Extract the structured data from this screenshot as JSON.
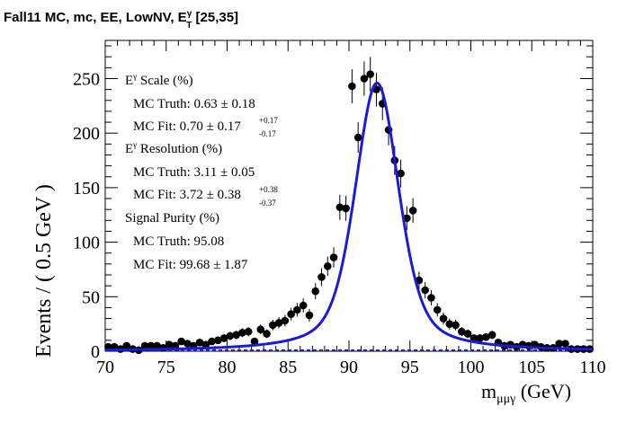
{
  "title": {
    "main": "Fall11 MC, mc, EE, LowNV, E",
    "sup": "γ",
    "sub": "T",
    "range": " [25,35]"
  },
  "annotations": {
    "scale_label_E": "E",
    "scale_label_sup": "γ",
    "scale_label_rest": " Scale (%)",
    "scale_truth": "MC Truth: 0.63 ± 0.18",
    "scale_fit": "MC Fit: 0.70 ± 0.17",
    "scale_fit_up": "+0.17",
    "scale_fit_dn": "-0.17",
    "res_label_E": "E",
    "res_label_sup": "γ",
    "res_label_rest": " Resolution (%)",
    "res_truth": "MC Truth: 3.11 ± 0.05",
    "res_fit": "MC Fit: 3.72 ± 0.38",
    "res_fit_up": "+0.38",
    "res_fit_dn": "-0.37",
    "purity_label": "Signal Purity (%)",
    "purity_truth": "MC Truth: 95.08",
    "purity_fit": "MC Fit: 99.68 ± 1.87"
  },
  "chart_data": {
    "type": "scatter",
    "xlabel_main": "m",
    "xlabel_sub": "μμγ",
    "xlabel_unit": " (GeV)",
    "ylabel": "Events / ( 0.5 GeV )",
    "xlim": [
      70,
      110
    ],
    "ylim": [
      0,
      285
    ],
    "xticks": [
      70,
      75,
      80,
      85,
      90,
      95,
      100,
      105,
      110
    ],
    "yticks": [
      0,
      50,
      100,
      150,
      200,
      250
    ],
    "x": [
      70.25,
      70.75,
      71.25,
      71.75,
      72.25,
      72.75,
      73.25,
      73.75,
      74.25,
      74.75,
      75.25,
      75.75,
      76.25,
      76.75,
      77.25,
      77.75,
      78.25,
      78.75,
      79.25,
      79.75,
      80.25,
      80.75,
      81.25,
      81.75,
      82.25,
      82.75,
      83.25,
      83.75,
      84.25,
      84.75,
      85.25,
      85.75,
      86.25,
      86.75,
      87.25,
      87.75,
      88.25,
      88.75,
      89.25,
      89.75,
      90.25,
      90.75,
      91.25,
      91.75,
      92.25,
      92.75,
      93.25,
      93.75,
      94.25,
      94.75,
      95.25,
      95.75,
      96.25,
      96.75,
      97.25,
      97.75,
      98.25,
      98.75,
      99.25,
      99.75,
      100.25,
      100.75,
      101.25,
      101.75,
      102.25,
      102.75,
      103.25,
      103.75,
      104.25,
      104.75,
      105.25,
      105.75,
      106.25,
      106.75,
      107.25,
      107.75,
      108.25,
      108.75,
      109.25,
      109.75
    ],
    "y": [
      4,
      4,
      2,
      5,
      2,
      1,
      5,
      5,
      5,
      3,
      6,
      5,
      9,
      7,
      5,
      8,
      6,
      9,
      10,
      12,
      14,
      15,
      17,
      18,
      9,
      20,
      16,
      24,
      26,
      28,
      34,
      38,
      42,
      33,
      55,
      68,
      78,
      86,
      132,
      131,
      243,
      196,
      250,
      254,
      240,
      227,
      203,
      175,
      163,
      122,
      129,
      65,
      56,
      49,
      38,
      30,
      25,
      24,
      18,
      16,
      12,
      12,
      13,
      15,
      8,
      5,
      6,
      4,
      6,
      5,
      6,
      4,
      3,
      3,
      7,
      7,
      2,
      2,
      2,
      2
    ],
    "errors": [
      2,
      2,
      1.4,
      2.2,
      1.4,
      1,
      2.2,
      2.2,
      2.2,
      1.7,
      2.4,
      2.2,
      3,
      2.6,
      2.2,
      2.8,
      2.4,
      3,
      3.2,
      3.5,
      3.7,
      3.9,
      4.1,
      4.2,
      3,
      4.5,
      4,
      4.9,
      5.1,
      5.3,
      5.8,
      6.2,
      6.5,
      5.7,
      7.4,
      8.2,
      8.8,
      9.3,
      11.5,
      11.4,
      15.6,
      14,
      15.8,
      15.9,
      15.5,
      15.1,
      14.2,
      13.2,
      12.8,
      11,
      11.4,
      8.1,
      7.5,
      7,
      6.2,
      5.5,
      5,
      4.9,
      4.2,
      4,
      3.5,
      3.5,
      3.6,
      3.9,
      2.8,
      2.2,
      2.4,
      2,
      2.4,
      2.2,
      2.4,
      2,
      1.7,
      1.7,
      2.6,
      2.6,
      1.4,
      1.4,
      1.4,
      1.4
    ],
    "fit": {
      "type": "line",
      "color": "#1a1ad8",
      "peak_x": 92.3,
      "peak_y": 246
    },
    "background": {
      "type": "line",
      "color": "#1a1ad8",
      "style": "dashed",
      "level": 0
    }
  }
}
